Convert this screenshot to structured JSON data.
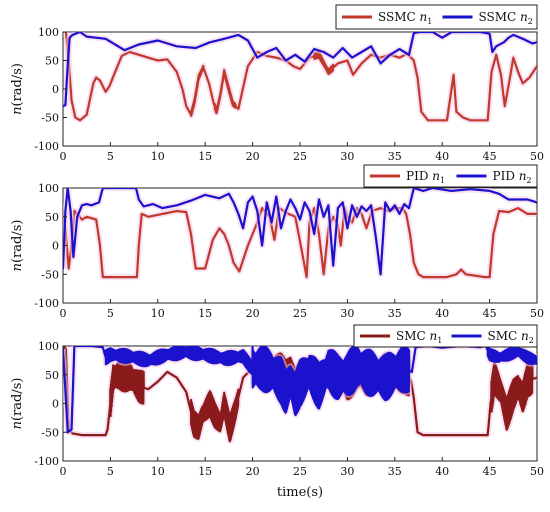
{
  "chart_data": [
    {
      "type": "line",
      "panel": "top",
      "xlim": [
        0,
        50
      ],
      "ylim": [
        -100,
        100
      ],
      "xticks": [
        0,
        5,
        10,
        15,
        20,
        25,
        30,
        35,
        40,
        45,
        50
      ],
      "yticks": [
        -100,
        -50,
        0,
        50,
        100
      ],
      "ylabel": "n(rad/s)",
      "xlabel": "",
      "grid": false,
      "legend_position": "top-right, outside",
      "series": [
        {
          "name": "SSMC n1",
          "base": "SSMC",
          "sub": "1",
          "color": "#c0392b",
          "x": [
            0,
            0.3,
            0.6,
            0.9,
            1.3,
            1.8,
            2.5,
            3.2,
            3.5,
            3.9,
            4.5,
            4.9,
            5.5,
            6.2,
            7.0,
            8.0,
            9.0,
            10.0,
            11.0,
            12.0,
            12.6,
            13.0,
            13.5,
            13.9,
            14.3,
            14.8,
            15.4,
            15.9,
            16.2,
            16.6,
            17.0,
            17.4,
            17.9,
            18.5,
            19.5,
            20.5,
            21.5,
            22.5,
            23.5,
            24.3,
            25.0,
            26.0,
            27.0,
            28.0,
            29.0,
            30.0,
            30.6,
            31.5,
            32.5,
            33.5,
            34.5,
            35.5,
            36.3,
            37.0,
            37.4,
            37.8,
            38.5,
            39.5,
            40.5,
            40.9,
            41.2,
            41.5,
            42.2,
            43.0,
            44.0,
            44.8,
            45.2,
            45.7,
            46.2,
            46.6,
            47.1,
            47.5,
            48.0,
            48.5,
            49.2,
            50.0
          ],
          "y": [
            100,
            102,
            50,
            -20,
            -50,
            -55,
            -45,
            10,
            20,
            15,
            -5,
            5,
            30,
            58,
            65,
            60,
            55,
            50,
            52,
            30,
            0,
            -30,
            -45,
            -20,
            20,
            38,
            10,
            -25,
            -40,
            -10,
            30,
            5,
            -25,
            -35,
            40,
            65,
            58,
            55,
            50,
            40,
            35,
            55,
            60,
            30,
            45,
            50,
            25,
            45,
            60,
            55,
            60,
            55,
            62,
            50,
            20,
            -40,
            -55,
            -55,
            -55,
            -10,
            25,
            -40,
            -50,
            -55,
            -55,
            -55,
            30,
            60,
            25,
            -30,
            15,
            55,
            30,
            10,
            20,
            40
          ]
        },
        {
          "name": "SSMC n2",
          "base": "SSMC",
          "sub": "2",
          "color": "#1a12cc",
          "x": [
            0,
            0.25,
            0.45,
            0.7,
            1.0,
            1.8,
            2.5,
            4.5,
            6.5,
            8.0,
            10.0,
            12.0,
            14.0,
            15.5,
            17.0,
            18.5,
            19.5,
            20.5,
            21.5,
            22.5,
            23.5,
            24.5,
            25.5,
            26.5,
            27.5,
            28.5,
            29.5,
            30.5,
            31.5,
            32.5,
            33.5,
            34.5,
            35.5,
            36.5,
            37.0,
            37.6,
            38.3,
            39.0,
            40.0,
            41.0,
            42.0,
            43.0,
            44.0,
            45.0,
            45.3,
            45.7,
            46.5,
            47.0,
            47.5,
            48.5,
            49.5,
            50.0
          ],
          "y": [
            -30,
            -28,
            30,
            90,
            95,
            100,
            92,
            88,
            68,
            78,
            85,
            75,
            72,
            82,
            88,
            95,
            85,
            55,
            65,
            72,
            50,
            60,
            48,
            70,
            65,
            55,
            72,
            55,
            65,
            75,
            45,
            60,
            70,
            60,
            98,
            100,
            100,
            100,
            90,
            100,
            100,
            100,
            100,
            97,
            65,
            75,
            82,
            90,
            95,
            88,
            80,
            82
          ]
        }
      ]
    },
    {
      "type": "line",
      "panel": "middle",
      "xlim": [
        0,
        50
      ],
      "ylim": [
        -100,
        100
      ],
      "xticks": [
        0,
        5,
        10,
        15,
        20,
        25,
        30,
        35,
        40,
        45,
        50
      ],
      "yticks": [
        -100,
        -50,
        0,
        50,
        100
      ],
      "ylabel": "n(rad/s)",
      "xlabel": "",
      "grid": false,
      "legend_position": "top-right, outside",
      "series": [
        {
          "name": "PID n1",
          "base": "PID",
          "sub": "1",
          "color": "#c0392b",
          "x": [
            0,
            0.3,
            0.6,
            0.9,
            1.2,
            1.5,
            2.0,
            2.5,
            3.5,
            3.9,
            4.2,
            7.8,
            8.0,
            8.3,
            9.0,
            10.5,
            12.0,
            13.0,
            13.5,
            14.0,
            15.0,
            15.8,
            16.5,
            17.0,
            17.5,
            18.0,
            18.6,
            19.5,
            20.5,
            21.0,
            21.8,
            22.3,
            22.8,
            23.3,
            23.8,
            24.5,
            25.2,
            25.7,
            26.0,
            26.5,
            27.0,
            27.5,
            28.0,
            28.5,
            29.0,
            29.3,
            29.7,
            30.0,
            30.5,
            31.0,
            31.5,
            32.0,
            32.6,
            33.5,
            34.3,
            35.2,
            35.8,
            36.2,
            36.6,
            37.0,
            37.5,
            38.0,
            38.5,
            40.5,
            41.5,
            42.0,
            42.5,
            44.5,
            45.0,
            45.4,
            46.0,
            47.0,
            48.0,
            49.0,
            50.0
          ],
          "y": [
            60,
            20,
            -40,
            0,
            60,
            55,
            45,
            50,
            45,
            0,
            -55,
            -55,
            0,
            55,
            50,
            55,
            60,
            58,
            20,
            -40,
            -40,
            10,
            30,
            20,
            0,
            -30,
            -45,
            0,
            40,
            65,
            50,
            10,
            65,
            60,
            55,
            50,
            -10,
            -55,
            40,
            65,
            20,
            -50,
            30,
            50,
            35,
            0,
            65,
            50,
            40,
            65,
            55,
            30,
            60,
            65,
            60,
            65,
            65,
            55,
            20,
            -30,
            -50,
            -55,
            -55,
            -55,
            -50,
            -42,
            -50,
            -55,
            -55,
            20,
            60,
            58,
            65,
            55,
            55
          ]
        },
        {
          "name": "PID n2",
          "base": "PID",
          "sub": "2",
          "color": "#1a12cc",
          "x": [
            0,
            0.25,
            0.5,
            0.8,
            1.1,
            1.5,
            2.0,
            2.5,
            3.0,
            3.8,
            4.2,
            5.5,
            7.7,
            8.0,
            8.5,
            9.5,
            10.5,
            12.0,
            13.5,
            15.0,
            16.5,
            17.5,
            18.0,
            18.5,
            19.0,
            19.5,
            20.0,
            20.5,
            21.0,
            21.5,
            22.0,
            22.5,
            23.0,
            23.5,
            24.0,
            24.5,
            25.0,
            25.5,
            26.0,
            26.5,
            27.0,
            27.5,
            28.0,
            28.5,
            29.0,
            29.5,
            30.0,
            30.5,
            31.0,
            31.5,
            32.0,
            32.5,
            33.0,
            33.5,
            34.0,
            34.5,
            35.0,
            35.5,
            36.0,
            36.5,
            37.0,
            38.0,
            39.0,
            41.0,
            43.0,
            45.0,
            46.0,
            47.0,
            49.0,
            50.0
          ],
          "y": [
            -40,
            60,
            100,
            60,
            -20,
            50,
            70,
            72,
            70,
            75,
            100,
            100,
            100,
            80,
            68,
            72,
            65,
            70,
            78,
            88,
            82,
            90,
            75,
            55,
            30,
            75,
            85,
            60,
            0,
            75,
            40,
            85,
            30,
            60,
            80,
            65,
            45,
            75,
            60,
            20,
            80,
            50,
            70,
            -35,
            65,
            75,
            30,
            70,
            50,
            68,
            60,
            70,
            15,
            -50,
            75,
            60,
            70,
            55,
            72,
            65,
            100,
            95,
            100,
            95,
            98,
            95,
            90,
            80,
            80,
            75
          ]
        }
      ]
    },
    {
      "type": "line",
      "panel": "bottom",
      "xlim": [
        0,
        50
      ],
      "ylim": [
        -100,
        100
      ],
      "xticks": [
        0,
        5,
        10,
        15,
        20,
        25,
        30,
        35,
        40,
        45,
        50
      ],
      "yticks": [
        -100,
        -50,
        0,
        50,
        100
      ],
      "ylabel": "n(rad/s)",
      "xlabel": "time(s)",
      "grid": false,
      "legend_position": "top-right, inside",
      "series": [
        {
          "name": "SMC n1",
          "base": "SMC",
          "sub": "1",
          "color": "#8b1a1a",
          "x": [
            0,
            0.3,
            0.6,
            1.0,
            2.0,
            3.5,
            4.5,
            4.7,
            5.0,
            5.3,
            6.0,
            7.0,
            8.0,
            9.0,
            10.0,
            11.0,
            12.0,
            13.0,
            13.8,
            14.3,
            14.7,
            15.5,
            16.0,
            16.6,
            17.0,
            17.6,
            18.2,
            19.0,
            20.0,
            21.0,
            22.0,
            23.0,
            23.5,
            24.0,
            24.5,
            25.0,
            26.0,
            27.0,
            28.0,
            29.0,
            30.0,
            31.0,
            32.0,
            33.0,
            34.0,
            35.0,
            36.0,
            36.7,
            37.0,
            37.4,
            38.0,
            40.0,
            42.0,
            44.0,
            44.8,
            45.1,
            45.5,
            46.2,
            46.8,
            47.5,
            48.0,
            48.5,
            49.0,
            50.0
          ],
          "y": [
            100,
            95,
            -45,
            -52,
            -55,
            -55,
            -55,
            -45,
            0,
            45,
            50,
            48,
            30,
            25,
            38,
            55,
            45,
            20,
            -35,
            -42,
            -20,
            0,
            -20,
            -35,
            0,
            -45,
            -10,
            45,
            62,
            65,
            60,
            55,
            45,
            60,
            30,
            40,
            55,
            40,
            58,
            55,
            35,
            55,
            45,
            50,
            55,
            48,
            50,
            40,
            10,
            -50,
            -55,
            -55,
            -55,
            -55,
            -55,
            0,
            45,
            20,
            -20,
            15,
            30,
            10,
            40,
            45
          ]
        },
        {
          "name": "SMC n2",
          "base": "SMC",
          "sub": "2",
          "color": "#1a12cc",
          "x": [
            0,
            0.5,
            0.9,
            1.2,
            2.0,
            3.0,
            4.2,
            4.5,
            5.0,
            7.0,
            9.0,
            11.0,
            13.0,
            15.0,
            17.0,
            19.0,
            20.0,
            21.0,
            22.0,
            23.0,
            23.5,
            24.0,
            24.5,
            25.0,
            26.0,
            27.0,
            28.0,
            29.0,
            30.0,
            31.0,
            32.0,
            33.0,
            34.0,
            35.0,
            36.0,
            36.8,
            37.2,
            38.5,
            40.0,
            42.0,
            44.0,
            44.6,
            45.0,
            46.0,
            47.0,
            48.0,
            49.0,
            50.0
          ],
          "y": [
            95,
            -50,
            -45,
            100,
            100,
            100,
            98,
            80,
            85,
            82,
            75,
            85,
            90,
            85,
            78,
            82,
            60,
            62,
            55,
            40,
            20,
            40,
            15,
            35,
            55,
            30,
            60,
            45,
            50,
            65,
            55,
            50,
            45,
            55,
            60,
            55,
            98,
            100,
            97,
            100,
            98,
            100,
            85,
            80,
            85,
            90,
            80,
            75
          ]
        }
      ]
    }
  ],
  "oscillation": {
    "panel1": [
      {
        "t0": 13.5,
        "t1": 14.8,
        "amp": 4
      },
      {
        "t0": 16.0,
        "t1": 18.2,
        "amp": 4
      },
      {
        "t0": 26.5,
        "t1": 28.5,
        "amp": 5
      }
    ],
    "panel3_n1": [
      {
        "t0": 5.0,
        "t1": 8.5,
        "amp": 28
      },
      {
        "t0": 13.5,
        "t1": 18.5,
        "amp": 22
      },
      {
        "t0": 20.0,
        "t1": 36.5,
        "amp": 32
      },
      {
        "t0": 45.2,
        "t1": 49.5,
        "amp": 28
      }
    ],
    "panel3_n2": [
      {
        "t0": 4.5,
        "t1": 20.0,
        "amp": 12
      },
      {
        "t0": 20.0,
        "t1": 36.5,
        "amp": 40
      },
      {
        "t0": 44.8,
        "t1": 50.0,
        "amp": 10
      }
    ]
  },
  "colors": {
    "n1": "#c0392b",
    "n1_smc": "#8b1a1a",
    "n2": "#1a12cc",
    "glow": "#f4c6e8"
  }
}
